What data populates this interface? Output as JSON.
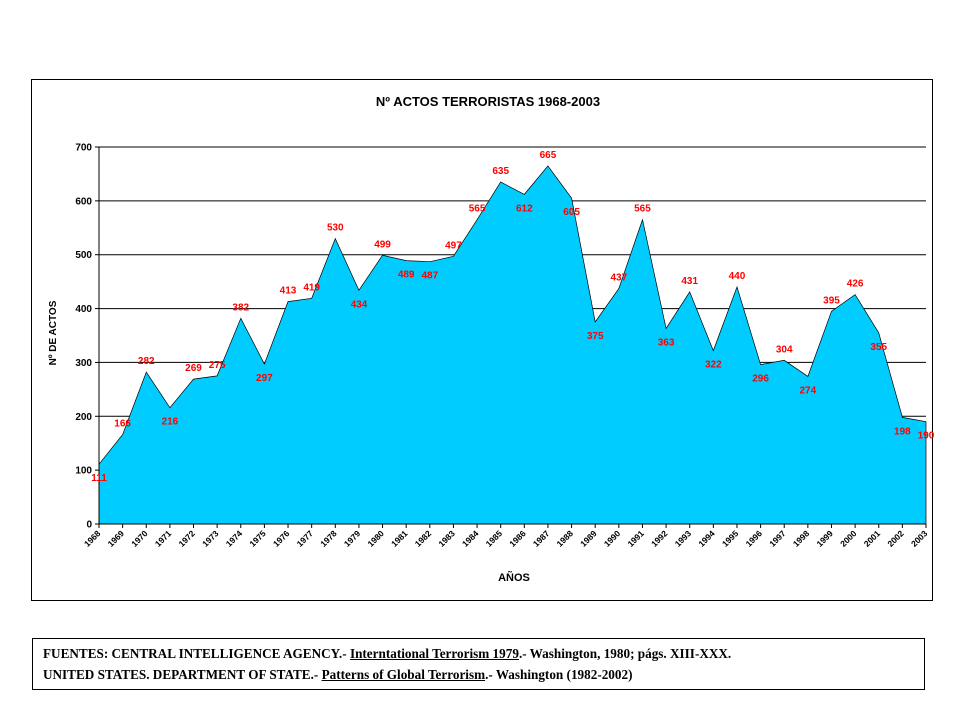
{
  "chart_data": {
    "type": "area",
    "title": "Nº ACTOS TERRORISTAS 1968-2003",
    "xlabel": "AÑOS",
    "ylabel": "Nº DE ACTOS",
    "ylim": [
      0,
      700
    ],
    "yticks": [
      "0",
      "100",
      "200",
      "300",
      "400",
      "500",
      "600",
      "700"
    ],
    "grid": true,
    "fill_color": "#00CCFF",
    "label_color": "#FF0000",
    "categories": [
      "1968",
      "1969",
      "1970",
      "1971",
      "1972",
      "1973",
      "1974",
      "1975",
      "1976",
      "1977",
      "1978",
      "1979",
      "1980",
      "1981",
      "1982",
      "1983",
      "1984",
      "1985",
      "1986",
      "1987",
      "1988",
      "1989",
      "1990",
      "1991",
      "1992",
      "1993",
      "1994",
      "1995",
      "1996",
      "1997",
      "1998",
      "1999",
      "2000",
      "2001",
      "2002",
      "2003"
    ],
    "values": [
      111,
      166,
      282,
      216,
      269,
      275,
      382,
      297,
      413,
      419,
      530,
      434,
      499,
      489,
      487,
      497,
      565,
      635,
      612,
      665,
      605,
      375,
      437,
      565,
      363,
      431,
      322,
      440,
      296,
      304,
      274,
      395,
      426,
      355,
      198,
      190
    ],
    "data_labels": [
      {
        "index": 0,
        "text": "111"
      },
      {
        "index": 1,
        "text": "166"
      },
      {
        "index": 2,
        "text": "282"
      },
      {
        "index": 3,
        "text": "216"
      },
      {
        "index": 4,
        "text": "269"
      },
      {
        "index": 5,
        "text": "275"
      },
      {
        "index": 6,
        "text": "382"
      },
      {
        "index": 7,
        "text": "297"
      },
      {
        "index": 8,
        "text": "413"
      },
      {
        "index": 9,
        "text": "419"
      },
      {
        "index": 10,
        "text": "530"
      },
      {
        "index": 11,
        "text": "434"
      },
      {
        "index": 12,
        "text": "499"
      },
      {
        "index": 13,
        "text": "489"
      },
      {
        "index": 14,
        "text": "487"
      },
      {
        "index": 15,
        "text": "497"
      },
      {
        "index": 16,
        "text": "565"
      },
      {
        "index": 17,
        "text": "635"
      },
      {
        "index": 18,
        "text": "612"
      },
      {
        "index": 19,
        "text": "665"
      },
      {
        "index": 20,
        "text": "605"
      },
      {
        "index": 21,
        "text": "375"
      },
      {
        "index": 22,
        "text": "437"
      },
      {
        "index": 23,
        "text": "565"
      },
      {
        "index": 24,
        "text": "363"
      },
      {
        "index": 25,
        "text": "431"
      },
      {
        "index": 26,
        "text": "322"
      },
      {
        "index": 27,
        "text": "440"
      },
      {
        "index": 28,
        "text": "296"
      },
      {
        "index": 29,
        "text": "304"
      },
      {
        "index": 30,
        "text": "274"
      },
      {
        "index": 31,
        "text": "395"
      },
      {
        "index": 32,
        "text": "426"
      },
      {
        "index": 33,
        "text": "355"
      },
      {
        "index": 34,
        "text": "198"
      },
      {
        "index": 35,
        "text": "190"
      }
    ]
  },
  "sources": {
    "line1_prefix": "FUENTES: CENTRAL INTELLIGENCE AGENCY.- ",
    "line1_title": "Interntational Terrorism 1979",
    "line1_suffix": ".- Washington, 1980; págs. XIII-XXX.",
    "line2_prefix": "UNITED STATES. DEPARTMENT OF STATE.- ",
    "line2_title": "Patterns of Global Terrorism",
    "line2_suffix": ".- Washington (1982-2002)"
  }
}
